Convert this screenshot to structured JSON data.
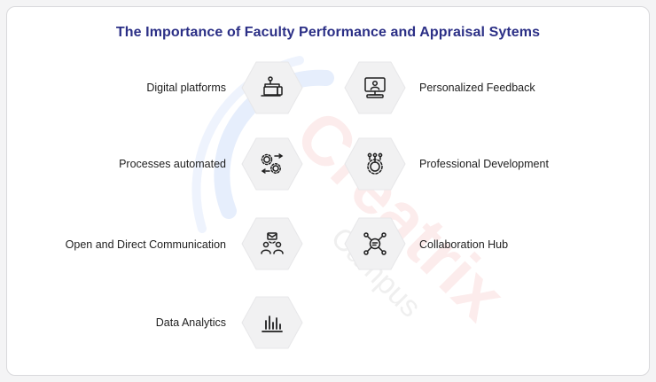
{
  "title": "The Importance of Faculty Performance and Appraisal Sytems",
  "items_left": [
    {
      "label": "Digital platforms",
      "icon": "laptop-network-icon"
    },
    {
      "label": "Processes automated",
      "icon": "gears-icon"
    },
    {
      "label": "Open and Direct Communication",
      "icon": "people-message-icon"
    },
    {
      "label": "Data Analytics",
      "icon": "bar-chart-icon"
    }
  ],
  "items_right": [
    {
      "label": "Personalized Feedback",
      "icon": "monitor-user-icon"
    },
    {
      "label": "Professional Development",
      "icon": "gear-team-icon"
    },
    {
      "label": "Collaboration Hub",
      "icon": "network-hub-icon"
    }
  ],
  "watermark": {
    "brand": "Creatrix",
    "sub": "Campus"
  },
  "colors": {
    "title": "#2b2f86",
    "text": "#1e1e1e",
    "hex_fill": "#f1f1f2",
    "icon_stroke": "#1e1e1e",
    "watermark": "#e53935"
  }
}
